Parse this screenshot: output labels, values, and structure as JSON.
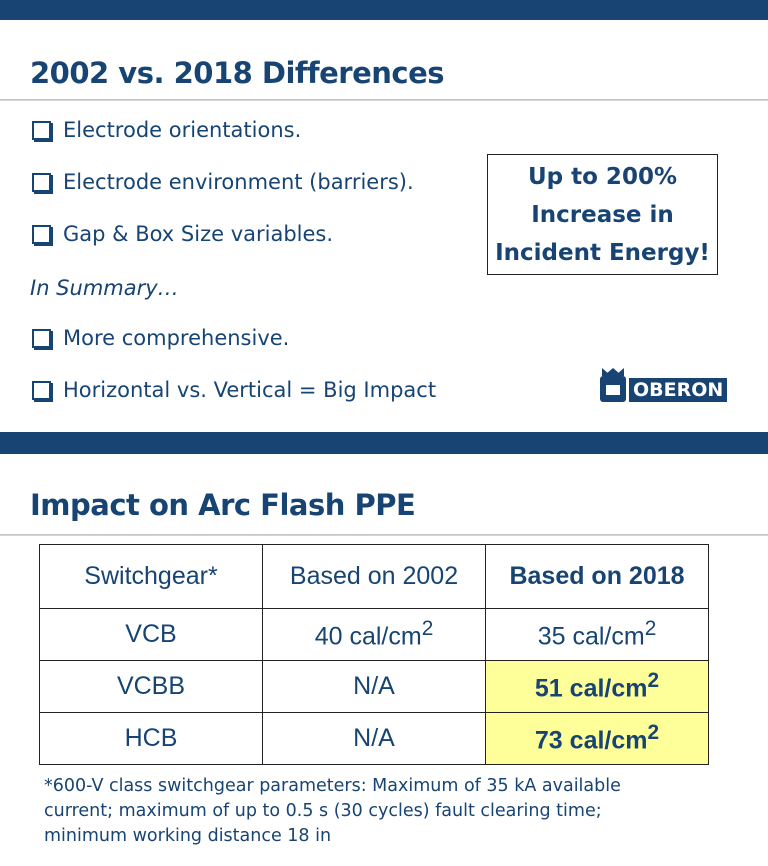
{
  "slide1": {
    "title": "2002 vs. 2018 Differences",
    "bullets": [
      "Electrode orientations.",
      "Electrode environment (barriers).",
      "Gap & Box Size variables."
    ],
    "summary_label": "In Summary…",
    "summary_bullets": [
      "More comprehensive.",
      "Horizontal vs. Vertical = Big Impact"
    ],
    "callout_lines": [
      "Up to 200%",
      "Increase in",
      "Incident Energy!"
    ],
    "logo_text": "OBERON"
  },
  "slide2": {
    "title": "Impact on Arc Flash PPE",
    "headers": [
      "Switchgear*",
      "Based on 2002",
      "Based on 2018"
    ],
    "rows": [
      {
        "gear": "VCB",
        "v2002": "40 cal/cm",
        "v2018": "35 cal/cm"
      },
      {
        "gear": "VCBB",
        "v2002": "N/A",
        "v2018": "51 cal/cm"
      },
      {
        "gear": "HCB",
        "v2002": "N/A",
        "v2018": "73 cal/cm"
      }
    ],
    "unit_exp": "2",
    "highlight_color": "#ffff99",
    "footnote": "*600-V class switchgear parameters:  Maximum of 35 kA available current; maximum of up to 0.5 s (30 cycles) fault clearing time; minimum working distance 18 in"
  },
  "brand_color": "#174473"
}
